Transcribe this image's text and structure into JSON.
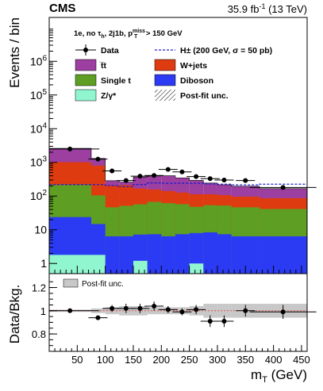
{
  "header": {
    "experiment": "CMS",
    "lumi": "35.9 fb",
    "lumi_exp": "-1",
    "lumi_energy": "(13 TeV)"
  },
  "selection_label": "1e, no τh, 2j1b, pT miss > 150 GeV",
  "colors": {
    "ttbar": "#9c3fa0",
    "wjets": "#df3b10",
    "single_t": "#5e9e22",
    "diboson": "#2b3bf4",
    "zgamma": "#8ff6cf",
    "signal": "#2020c8",
    "ratio_band": "#c8c8c8",
    "unity_line": "#e05050"
  },
  "chart_data": [
    {
      "type": "area",
      "subtype": "stacked-histogram",
      "ylabel": "Events / bin",
      "yscale": "log",
      "ylim": [
        0.5,
        20000000
      ],
      "xlim": [
        0,
        460
      ],
      "ytick_labels": [
        "1",
        "10",
        "10^2",
        "10^3",
        "10^4",
        "10^5",
        "10^6"
      ],
      "bin_edges": [
        0,
        75,
        100,
        125,
        150,
        175,
        200,
        225,
        250,
        275,
        300,
        325,
        375,
        460
      ],
      "series": [
        {
          "name": "Z/γ*",
          "color_key": "zgamma",
          "values": [
            1.8,
            1.8,
            0.4,
            0.4,
            1.2,
            0.4,
            0.4,
            0.4,
            1.0,
            0.4,
            0.4,
            0.4,
            0.4
          ]
        },
        {
          "name": "Diboson",
          "color_key": "diboson",
          "values": [
            22,
            13,
            6,
            6,
            6,
            7,
            6,
            7,
            7,
            8,
            7,
            6,
            6
          ]
        },
        {
          "name": "Single t",
          "color_key": "single_t",
          "values": [
            190,
            90,
            40,
            45,
            50,
            60,
            55,
            50,
            40,
            45,
            45,
            40,
            35
          ]
        },
        {
          "name": "W+jets",
          "color_key": "wjets",
          "values": [
            800,
            700,
            160,
            160,
            110,
            90,
            80,
            70,
            65,
            60,
            55,
            50,
            45
          ]
        },
        {
          "name": "t̅t",
          "color_key": "ttbar",
          "values": [
            1600,
            500,
            80,
            50,
            200,
            240,
            260,
            220,
            180,
            130,
            110,
            100,
            80
          ]
        }
      ],
      "data": {
        "name": "Data",
        "x": [
          37,
          87,
          112,
          137,
          162,
          187,
          212,
          237,
          262,
          287,
          312,
          350,
          417
        ],
        "y": [
          2500,
          1250,
          560,
          290,
          390,
          410,
          620,
          520,
          380,
          330,
          300,
          290,
          180
        ]
      },
      "signal": {
        "name": "H± (200 GeV, σ = 50 pb)",
        "x": [
          0,
          75,
          100,
          125,
          150,
          175,
          200,
          225,
          250,
          275,
          300,
          325,
          375,
          460
        ],
        "y": [
          220,
          220,
          205,
          190,
          220,
          245,
          240,
          240,
          240,
          230,
          225,
          215,
          225,
          245
        ]
      },
      "legend": {
        "placement": "top",
        "entries": [
          {
            "label": "Data",
            "kind": "marker"
          },
          {
            "label": "H± (200 GeV, σ = 50 pb)",
            "kind": "dashed"
          },
          {
            "label": "t̅t",
            "kind": "fill",
            "color_key": "ttbar"
          },
          {
            "label": "W+jets",
            "kind": "fill",
            "color_key": "wjets"
          },
          {
            "label": "Single t",
            "kind": "fill",
            "color_key": "single_t"
          },
          {
            "label": "Diboson",
            "kind": "fill",
            "color_key": "diboson"
          },
          {
            "label": "Z/γ*",
            "kind": "fill",
            "color_key": "zgamma"
          },
          {
            "label": "Post-fit unc.",
            "kind": "hatch"
          }
        ]
      }
    },
    {
      "type": "scatter",
      "subtype": "ratio",
      "ylabel": "Data/Bkg.",
      "xlabel": "mT (GeV)",
      "ylim": [
        0.65,
        1.32
      ],
      "xlim": [
        0,
        460
      ],
      "ytick_labels": [
        "0.8",
        "1",
        "1.2"
      ],
      "xtick_labels": [
        "50",
        "100",
        "150",
        "200",
        "250",
        "300",
        "350",
        "400",
        "450"
      ],
      "legend_entry": "Post-fit unc.",
      "points": {
        "x": [
          37,
          87,
          112,
          137,
          162,
          187,
          212,
          237,
          262,
          287,
          312,
          350,
          417
        ],
        "y": [
          1.0,
          0.94,
          1.02,
          1.02,
          1.02,
          1.04,
          1.01,
          0.99,
          1.01,
          0.91,
          0.91,
          1.0,
          0.99
        ],
        "yerr": [
          0.01,
          0.015,
          0.03,
          0.04,
          0.04,
          0.04,
          0.03,
          0.03,
          0.04,
          0.05,
          0.05,
          0.05,
          0.06
        ]
      },
      "band_halfwidth": [
        0.01,
        0.02,
        0.03,
        0.04,
        0.04,
        0.03,
        0.03,
        0.03,
        0.04,
        0.06,
        0.06,
        0.06,
        0.06
      ]
    }
  ]
}
